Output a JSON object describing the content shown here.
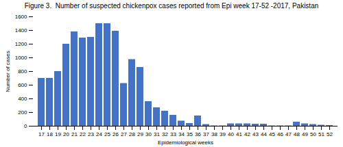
{
  "chart_data": {
    "type": "bar",
    "title": "Figure 3.  Number of suspected chickenpox cases reported from Epi week 17-52 -2017, Pakistan",
    "xlabel": "Epidemiological weeks",
    "ylabel": "Number of cases",
    "categories": [
      "17",
      "18",
      "19",
      "20",
      "21",
      "22",
      "23",
      "24",
      "25",
      "26",
      "27",
      "28",
      "29",
      "30",
      "31",
      "32",
      "33",
      "34",
      "35",
      "36",
      "37",
      "38",
      "39",
      "40",
      "41",
      "42",
      "43",
      "44",
      "45",
      "46",
      "47",
      "48",
      "49",
      "50",
      "51",
      "52"
    ],
    "values": [
      700,
      700,
      800,
      1200,
      1380,
      1290,
      1300,
      1500,
      1500,
      1390,
      625,
      975,
      860,
      360,
      270,
      220,
      160,
      75,
      40,
      150,
      25,
      5,
      5,
      35,
      35,
      35,
      30,
      30,
      5,
      5,
      5,
      60,
      35,
      25,
      15,
      10
    ],
    "color": "#4472C4",
    "ylim": [
      0,
      1600
    ],
    "yticks": [
      0,
      200,
      400,
      600,
      800,
      1000,
      1200,
      1400,
      1600
    ],
    "grid": false
  }
}
